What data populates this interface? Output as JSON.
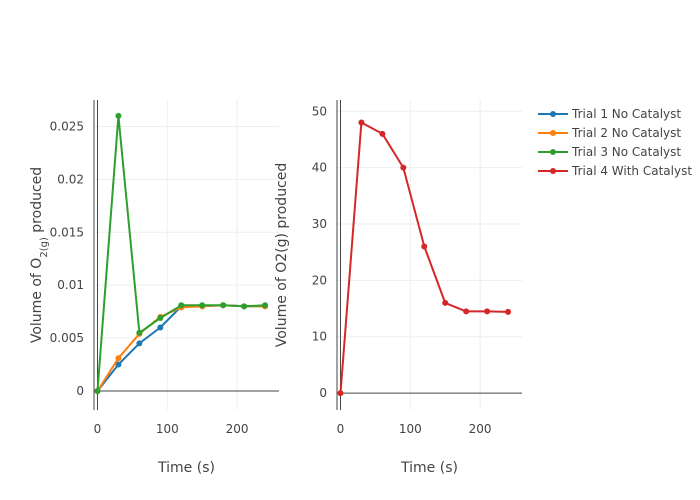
{
  "chart_data": [
    {
      "type": "line",
      "xlabel": "Time (s)",
      "ylabel_parts": {
        "before": "Volume of O",
        "sub": "2(g)",
        "after": " produced"
      },
      "xlim": [
        -5,
        260
      ],
      "ylim": [
        -0.0018,
        0.0275
      ],
      "xticks": [
        0,
        100,
        200
      ],
      "yticks": [
        0,
        0.005,
        0.01,
        0.015,
        0.02,
        0.025
      ],
      "ytick_labels": [
        "0",
        "0.005",
        "0.01",
        "0.015",
        "0.02",
        "0.025"
      ],
      "grid": true,
      "series": [
        {
          "name": "Trial 1 No Catalyst",
          "color": "#1f77b4",
          "x": [
            0,
            30,
            60,
            90,
            120,
            150,
            180,
            210,
            240
          ],
          "y": [
            0,
            0.0025,
            0.0045,
            0.006,
            0.008,
            0.008,
            0.0081,
            0.008,
            0.008
          ]
        },
        {
          "name": "Trial 2 No Catalyst",
          "color": "#ff7f0e",
          "x": [
            0,
            30,
            60,
            90,
            120,
            150,
            180,
            210,
            240
          ],
          "y": [
            0,
            0.0031,
            0.0054,
            0.007,
            0.0079,
            0.008,
            0.0081,
            0.008,
            0.008
          ]
        },
        {
          "name": "Trial 3 No Catalyst",
          "color": "#2ca02c",
          "x": [
            0,
            30,
            60,
            90,
            120,
            150,
            180,
            210,
            240
          ],
          "y": [
            0,
            0.026,
            0.0055,
            0.0069,
            0.0081,
            0.0081,
            0.0081,
            0.008,
            0.0081
          ]
        }
      ]
    },
    {
      "type": "line",
      "xlabel": "Time (s)",
      "ylabel": "Volume of O2(g)  produced",
      "xlim": [
        -5,
        260
      ],
      "ylim": [
        -3,
        52
      ],
      "xticks": [
        0,
        100,
        200
      ],
      "yticks": [
        0,
        10,
        20,
        30,
        40,
        50
      ],
      "ytick_labels": [
        "0",
        "10",
        "20",
        "30",
        "40",
        "50"
      ],
      "grid": true,
      "series": [
        {
          "name": "Trial 4 With Catalyst",
          "color": "#d62728",
          "x": [
            0,
            30,
            60,
            90,
            120,
            150,
            180,
            210,
            240
          ],
          "y": [
            0,
            48,
            46,
            40,
            26,
            16,
            14.5,
            14.5,
            14.4
          ]
        }
      ]
    }
  ],
  "legend": {
    "position": "top-right",
    "items": [
      {
        "label": "Trial 1 No Catalyst",
        "color": "#1f77b4"
      },
      {
        "label": "Trial 2 No Catalyst",
        "color": "#ff7f0e"
      },
      {
        "label": "Trial 3 No Catalyst",
        "color": "#2ca02c"
      },
      {
        "label": "Trial 4 With Catalyst",
        "color": "#d62728"
      }
    ]
  }
}
